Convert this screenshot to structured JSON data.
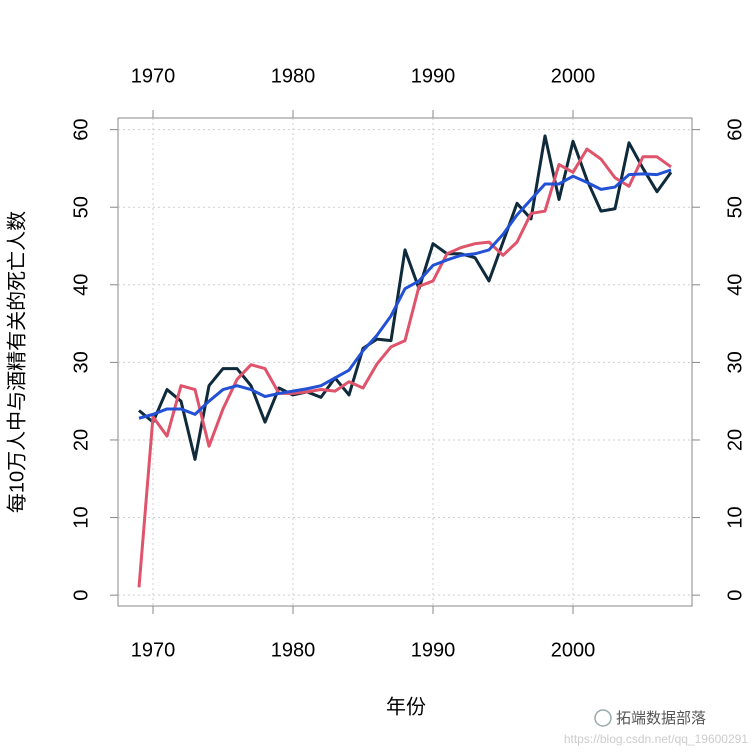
{
  "chart_data": {
    "type": "line",
    "ylabel": "每10万人中与酒精有关的死亡人数",
    "xlabel": "年份",
    "x": [
      1969,
      1970,
      1971,
      1972,
      1973,
      1974,
      1975,
      1976,
      1977,
      1978,
      1979,
      1980,
      1981,
      1982,
      1983,
      1984,
      1985,
      1986,
      1987,
      1988,
      1989,
      1990,
      1991,
      1992,
      1993,
      1994,
      1995,
      1996,
      1997,
      1998,
      1999,
      2000,
      2001,
      2002,
      2003,
      2004,
      2005,
      2006,
      2007
    ],
    "series": [
      {
        "color": "#0f2a3a",
        "values": [
          23.8,
          22.3,
          26.5,
          25,
          17.5,
          27,
          29.2,
          29.2,
          27,
          22.3,
          26.7,
          25.8,
          26.2,
          25.5,
          28,
          25.8,
          31.8,
          33,
          32.8,
          44.5,
          39.5,
          45.3,
          44,
          44,
          43.5,
          40.5,
          45.5,
          50.5,
          48.5,
          59.2,
          51,
          58.5,
          53.5,
          49.5,
          49.8,
          58.3,
          55,
          52,
          54.5
        ]
      },
      {
        "color": "#df536b",
        "values": [
          1,
          23,
          20.5,
          27,
          26.5,
          19.2,
          24,
          27.8,
          29.7,
          29.2,
          26,
          26,
          26.2,
          26.5,
          26.3,
          27.5,
          26.7,
          29.8,
          32,
          32.8,
          39.8,
          40.5,
          44,
          44.8,
          45.3,
          45.5,
          43.8,
          45.5,
          49.2,
          49.5,
          55.5,
          54.5,
          57.5,
          56.2,
          53.8,
          52.7,
          56.5,
          56.5,
          55.2
        ]
      },
      {
        "color": "#2351d6",
        "values": [
          22.8,
          23.3,
          24,
          24,
          23.3,
          25,
          26.5,
          27,
          26.5,
          25.6,
          26,
          26.3,
          26.6,
          27,
          28,
          29,
          31.5,
          33.5,
          36,
          39.5,
          40.5,
          42.5,
          43.2,
          43.8,
          44,
          44.5,
          46.5,
          49,
          51,
          53,
          53,
          54,
          53.2,
          52.3,
          52.6,
          54.2,
          54.3,
          54.2,
          54.8
        ]
      }
    ],
    "xlim": [
      1967.5,
      2008.5
    ],
    "xticks": [
      1970,
      1980,
      1990,
      2000
    ],
    "ylim": [
      -1.4,
      61.5
    ],
    "yticks": [
      0,
      10,
      20,
      30,
      40,
      50,
      60
    ],
    "grid": true,
    "watermark": [
      "拓端数据部落",
      "https://blog.csdn.net/qq_19600291"
    ]
  }
}
